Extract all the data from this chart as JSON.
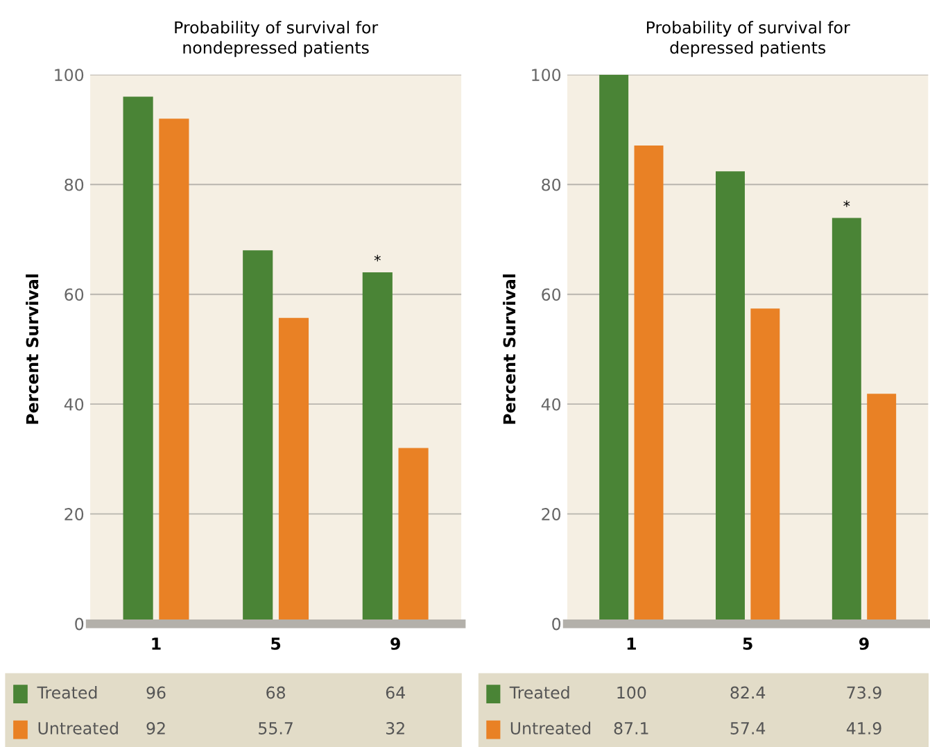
{
  "chart_data": [
    {
      "type": "bar",
      "title": "Probability of survival for\nnondepressed patients",
      "ylabel": "Percent Survival",
      "categories": [
        "1",
        "5",
        "9"
      ],
      "ylim": [
        0,
        100
      ],
      "yticks": [
        0,
        20,
        40,
        60,
        80,
        100
      ],
      "grid": "y",
      "legend": "bottom",
      "data_labels": true,
      "series": [
        {
          "name": "Treated",
          "color": "#4a8436",
          "values": [
            96,
            68,
            64
          ]
        },
        {
          "name": "Untreated",
          "color": "#e98125",
          "values": [
            92,
            55.7,
            32
          ]
        }
      ],
      "annotations": [
        {
          "text": "*",
          "x": "9",
          "y": 64
        }
      ]
    },
    {
      "type": "bar",
      "title": "Probability of survival for\ndepressed patients",
      "ylabel": "Percent Survival",
      "categories": [
        "1",
        "5",
        "9"
      ],
      "ylim": [
        0,
        100
      ],
      "yticks": [
        0,
        20,
        40,
        60,
        80,
        100
      ],
      "grid": "y",
      "legend": "bottom",
      "data_labels": true,
      "series": [
        {
          "name": "Treated",
          "color": "#4a8436",
          "values": [
            100,
            82.4,
            73.9
          ]
        },
        {
          "name": "Untreated",
          "color": "#e98125",
          "values": [
            87.1,
            57.4,
            41.9
          ]
        }
      ],
      "annotations": [
        {
          "text": "*",
          "x": "9",
          "y": 73.9
        }
      ]
    }
  ]
}
